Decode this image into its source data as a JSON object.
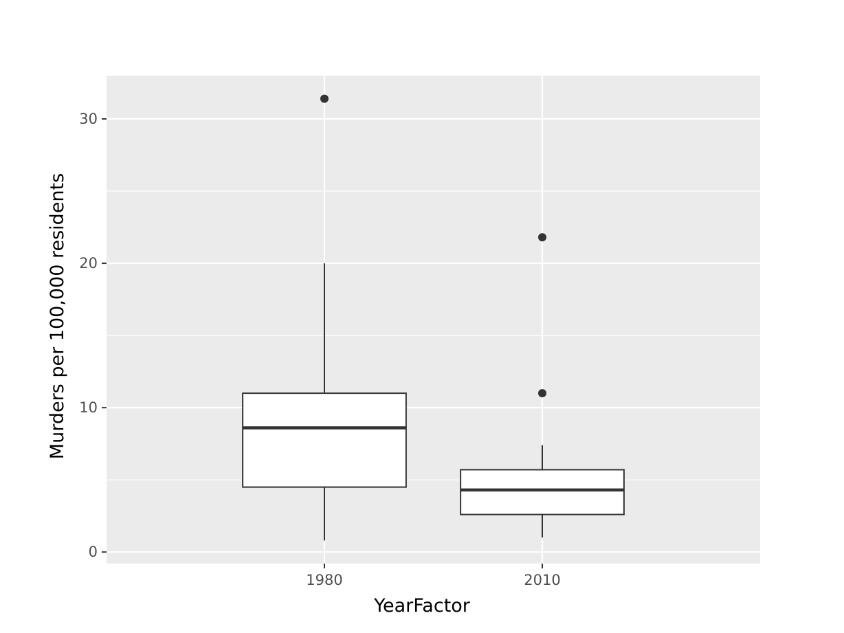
{
  "chart_data": {
    "type": "box",
    "title": "",
    "xlabel": "YearFactor",
    "ylabel": "Murders per 100,000 residents",
    "categories": [
      "1980",
      "2010"
    ],
    "ylim": [
      -0.8,
      33
    ],
    "yticks": [
      0,
      10,
      20,
      30
    ],
    "grid": true,
    "boxes": [
      {
        "category": "1980",
        "whisker_low": 0.8,
        "q1": 4.5,
        "median": 8.6,
        "q3": 11.0,
        "whisker_high": 20.0,
        "outliers": [
          31.4
        ]
      },
      {
        "category": "2010",
        "whisker_low": 1.0,
        "q1": 2.6,
        "median": 4.3,
        "q3": 5.7,
        "whisker_high": 7.4,
        "outliers": [
          21.8,
          11.0
        ]
      }
    ],
    "colors": {
      "panel": "#ebebeb",
      "grid": "#ffffff",
      "box_fill": "#ffffff",
      "box_line": "#333333"
    }
  }
}
